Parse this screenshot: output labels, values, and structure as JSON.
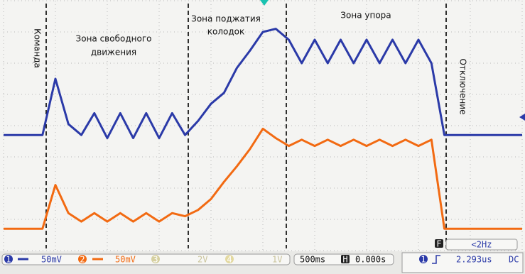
{
  "chart_data": {
    "type": "line",
    "annotations": {
      "command": "Команда",
      "free_motion": [
        "Зона свободного",
        "движения"
      ],
      "pad_press": [
        "Зона поджатия",
        "колодок"
      ],
      "stop": "Зона упора",
      "off": "Отключение"
    },
    "x": [
      0,
      0.25,
      0.5,
      0.75,
      1,
      1.25,
      1.5,
      1.75,
      2,
      2.25,
      2.5,
      2.75,
      3,
      3.25,
      3.5,
      3.75,
      4,
      4.25,
      4.5,
      4.75,
      5,
      5.25,
      5.5,
      5.75,
      6,
      6.25,
      6.5,
      6.75,
      7,
      7.25,
      7.5,
      7.75,
      8,
      8.25,
      8.5,
      8.75,
      9,
      9.25,
      9.5,
      9.75,
      10
    ],
    "xlim": [
      0,
      10
    ],
    "ylim": [
      -4,
      4
    ],
    "series": [
      {
        "name": "1",
        "color": "#2b3aa8",
        "values": [
          -0.3,
          -0.3,
          -0.3,
          -0.3,
          1.5,
          0.05,
          -0.3,
          0.4,
          -0.4,
          0.4,
          -0.4,
          0.4,
          -0.4,
          0.4,
          -0.3,
          0.15,
          0.7,
          1.05,
          1.85,
          2.4,
          3.0,
          3.1,
          2.75,
          2.0,
          2.75,
          2.0,
          2.75,
          2.0,
          2.75,
          2.0,
          2.75,
          2.0,
          2.75,
          2.0,
          -0.3,
          -0.3,
          -0.3,
          -0.3,
          -0.3,
          -0.3,
          -0.3
        ]
      },
      {
        "name": "2",
        "color": "#f26a12",
        "values": [
          -3.3,
          -3.3,
          -3.3,
          -3.3,
          -1.9,
          -2.8,
          -3.07,
          -2.8,
          -3.07,
          -2.8,
          -3.07,
          -2.8,
          -3.07,
          -2.8,
          -2.9,
          -2.7,
          -2.35,
          -1.8,
          -1.3,
          -0.75,
          -0.1,
          -0.4,
          -0.65,
          -0.45,
          -0.65,
          -0.45,
          -0.65,
          -0.45,
          -0.65,
          -0.45,
          -0.65,
          -0.45,
          -0.65,
          -0.45,
          -3.3,
          -3.3,
          -3.3,
          -3.3,
          -3.3,
          -3.3,
          -3.3
        ]
      }
    ],
    "status_bar": {
      "ch3": "3",
      "ch3_scale": "2V",
      "ch4": "4",
      "ch4_scale": "1V",
      "ch1_scale": "50mV",
      "ch2_scale": "50mV",
      "timebase": "500ms",
      "h_mark": "H",
      "delay": "0.000s",
      "f_mark": "F",
      "freq": "<2Hz",
      "trig_ch": "1",
      "trig_val": "2.293us",
      "coupling": "DC"
    }
  }
}
